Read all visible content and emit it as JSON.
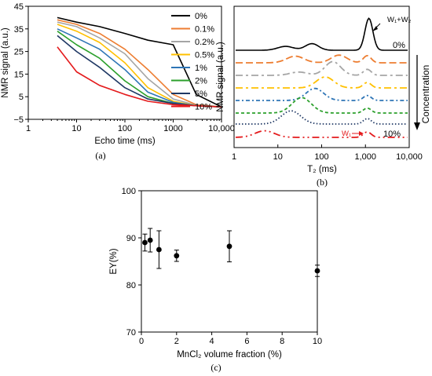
{
  "panel_labels": {
    "a": "(a)",
    "b": "(b)",
    "c": "(c)"
  },
  "chart_data": [
    {
      "type": "line",
      "xlabel": "Echo time (ms)",
      "ylabel": "NMR signal (a.u.)",
      "xscale": "log",
      "xlim": [
        1,
        10000
      ],
      "ylim": [
        -5,
        45
      ],
      "x_ticks": [
        "1",
        "10",
        "100",
        "1000",
        "10,000"
      ],
      "y_ticks": [
        "−5",
        "5",
        "15",
        "25",
        "35",
        "45"
      ],
      "legend_position": "top-right",
      "x": [
        4,
        10,
        30,
        100,
        300,
        1000,
        3000,
        10000
      ],
      "series": [
        {
          "name": "0%",
          "color": "#000000",
          "values": [
            40,
            38,
            36,
            33,
            30,
            28,
            6,
            0.5
          ]
        },
        {
          "name": "0.1%",
          "color": "#ed7d31",
          "values": [
            39,
            37,
            33,
            26,
            17,
            6,
            1.5,
            0.5
          ]
        },
        {
          "name": "0.2%",
          "color": "#a5a5a5",
          "values": [
            38,
            36,
            31,
            24,
            13,
            4,
            1.2,
            0.5
          ]
        },
        {
          "name": "0.5%",
          "color": "#ffc000",
          "values": [
            37,
            34,
            29,
            20,
            9,
            3,
            1,
            0.5
          ]
        },
        {
          "name": "1%",
          "color": "#2e75b6",
          "values": [
            35,
            31,
            26,
            17,
            7,
            2.5,
            1,
            0.5
          ]
        },
        {
          "name": "2%",
          "color": "#2ca02c",
          "values": [
            34,
            28,
            22,
            12,
            5,
            2,
            1,
            0.5
          ]
        },
        {
          "name": "5%",
          "color": "#1f3864",
          "values": [
            32,
            25,
            18,
            9,
            4,
            2,
            1,
            0.5
          ]
        },
        {
          "name": "10%",
          "color": "#e41a1c",
          "values": [
            27,
            16,
            10,
            6,
            3,
            1.5,
            1,
            0.5
          ]
        }
      ]
    },
    {
      "type": "line",
      "xlabel": "T₂ (ms)",
      "ylabel": "NMR signal (a.u.)",
      "xscale": "log",
      "xlim": [
        1,
        10000
      ],
      "x_ticks": [
        "1",
        "10",
        "100",
        "1,000",
        "10,000"
      ],
      "annotations": [
        "W₁+W₂",
        "W₁",
        "Concentration",
        "0%",
        "10%"
      ],
      "series": [
        {
          "name": "0%",
          "color": "#000000",
          "offset": 7,
          "peaks": [
            [
              15,
              0.7,
              0.18
            ],
            [
              60,
              1.2,
              0.15
            ],
            [
              1200,
              5.8,
              0.09
            ]
          ]
        },
        {
          "name": "0.1%",
          "color": "#ed7d31",
          "offset": 6,
          "peaks": [
            [
              25,
              1.2,
              0.2
            ],
            [
              250,
              1.4,
              0.18
            ],
            [
              1100,
              1.3,
              0.09
            ]
          ]
        },
        {
          "name": "0.2%",
          "color": "#a5a5a5",
          "offset": 5,
          "peaks": [
            [
              30,
              0.6,
              0.2
            ],
            [
              180,
              2.5,
              0.18
            ],
            [
              1100,
              1.1,
              0.09
            ]
          ]
        },
        {
          "name": "0.5%",
          "color": "#ffc000",
          "offset": 4,
          "peaks": [
            [
              120,
              2.0,
              0.2
            ],
            [
              1100,
              1.0,
              0.09
            ]
          ]
        },
        {
          "name": "1%",
          "color": "#2e75b6",
          "offset": 3,
          "peaks": [
            [
              70,
              2.2,
              0.2
            ],
            [
              1100,
              0.9,
              0.09
            ]
          ]
        },
        {
          "name": "2%",
          "color": "#2ca02c",
          "offset": 2,
          "peaks": [
            [
              35,
              2.8,
              0.22
            ],
            [
              1100,
              0.9,
              0.09
            ]
          ]
        },
        {
          "name": "5%",
          "color": "#1f3864",
          "offset": 1,
          "peaks": [
            [
              20,
              2.4,
              0.22
            ],
            [
              1100,
              1.0,
              0.09
            ]
          ]
        },
        {
          "name": "10%",
          "color": "#e41a1c",
          "offset": 0,
          "peaks": [
            [
              5,
              1.2,
              0.22
            ],
            [
              1100,
              1.0,
              0.09
            ]
          ]
        }
      ]
    },
    {
      "type": "scatter",
      "xlabel": "MnCl₂ volume fraction (%)",
      "ylabel": "EY(%)",
      "xlim": [
        0,
        10
      ],
      "ylim": [
        70,
        100
      ],
      "x_ticks": [
        "0",
        "2",
        "4",
        "6",
        "8",
        "10"
      ],
      "y_ticks": [
        "70",
        "80",
        "90",
        "100"
      ],
      "points": [
        {
          "x": 0.2,
          "y": 89.0,
          "err": 1.8
        },
        {
          "x": 0.5,
          "y": 89.5,
          "err": 2.5
        },
        {
          "x": 1.0,
          "y": 87.5,
          "err": 4.0
        },
        {
          "x": 2.0,
          "y": 86.2,
          "err": 1.2
        },
        {
          "x": 5.0,
          "y": 88.2,
          "err": 3.3
        },
        {
          "x": 10.0,
          "y": 83.0,
          "err": 1.2
        }
      ]
    }
  ]
}
